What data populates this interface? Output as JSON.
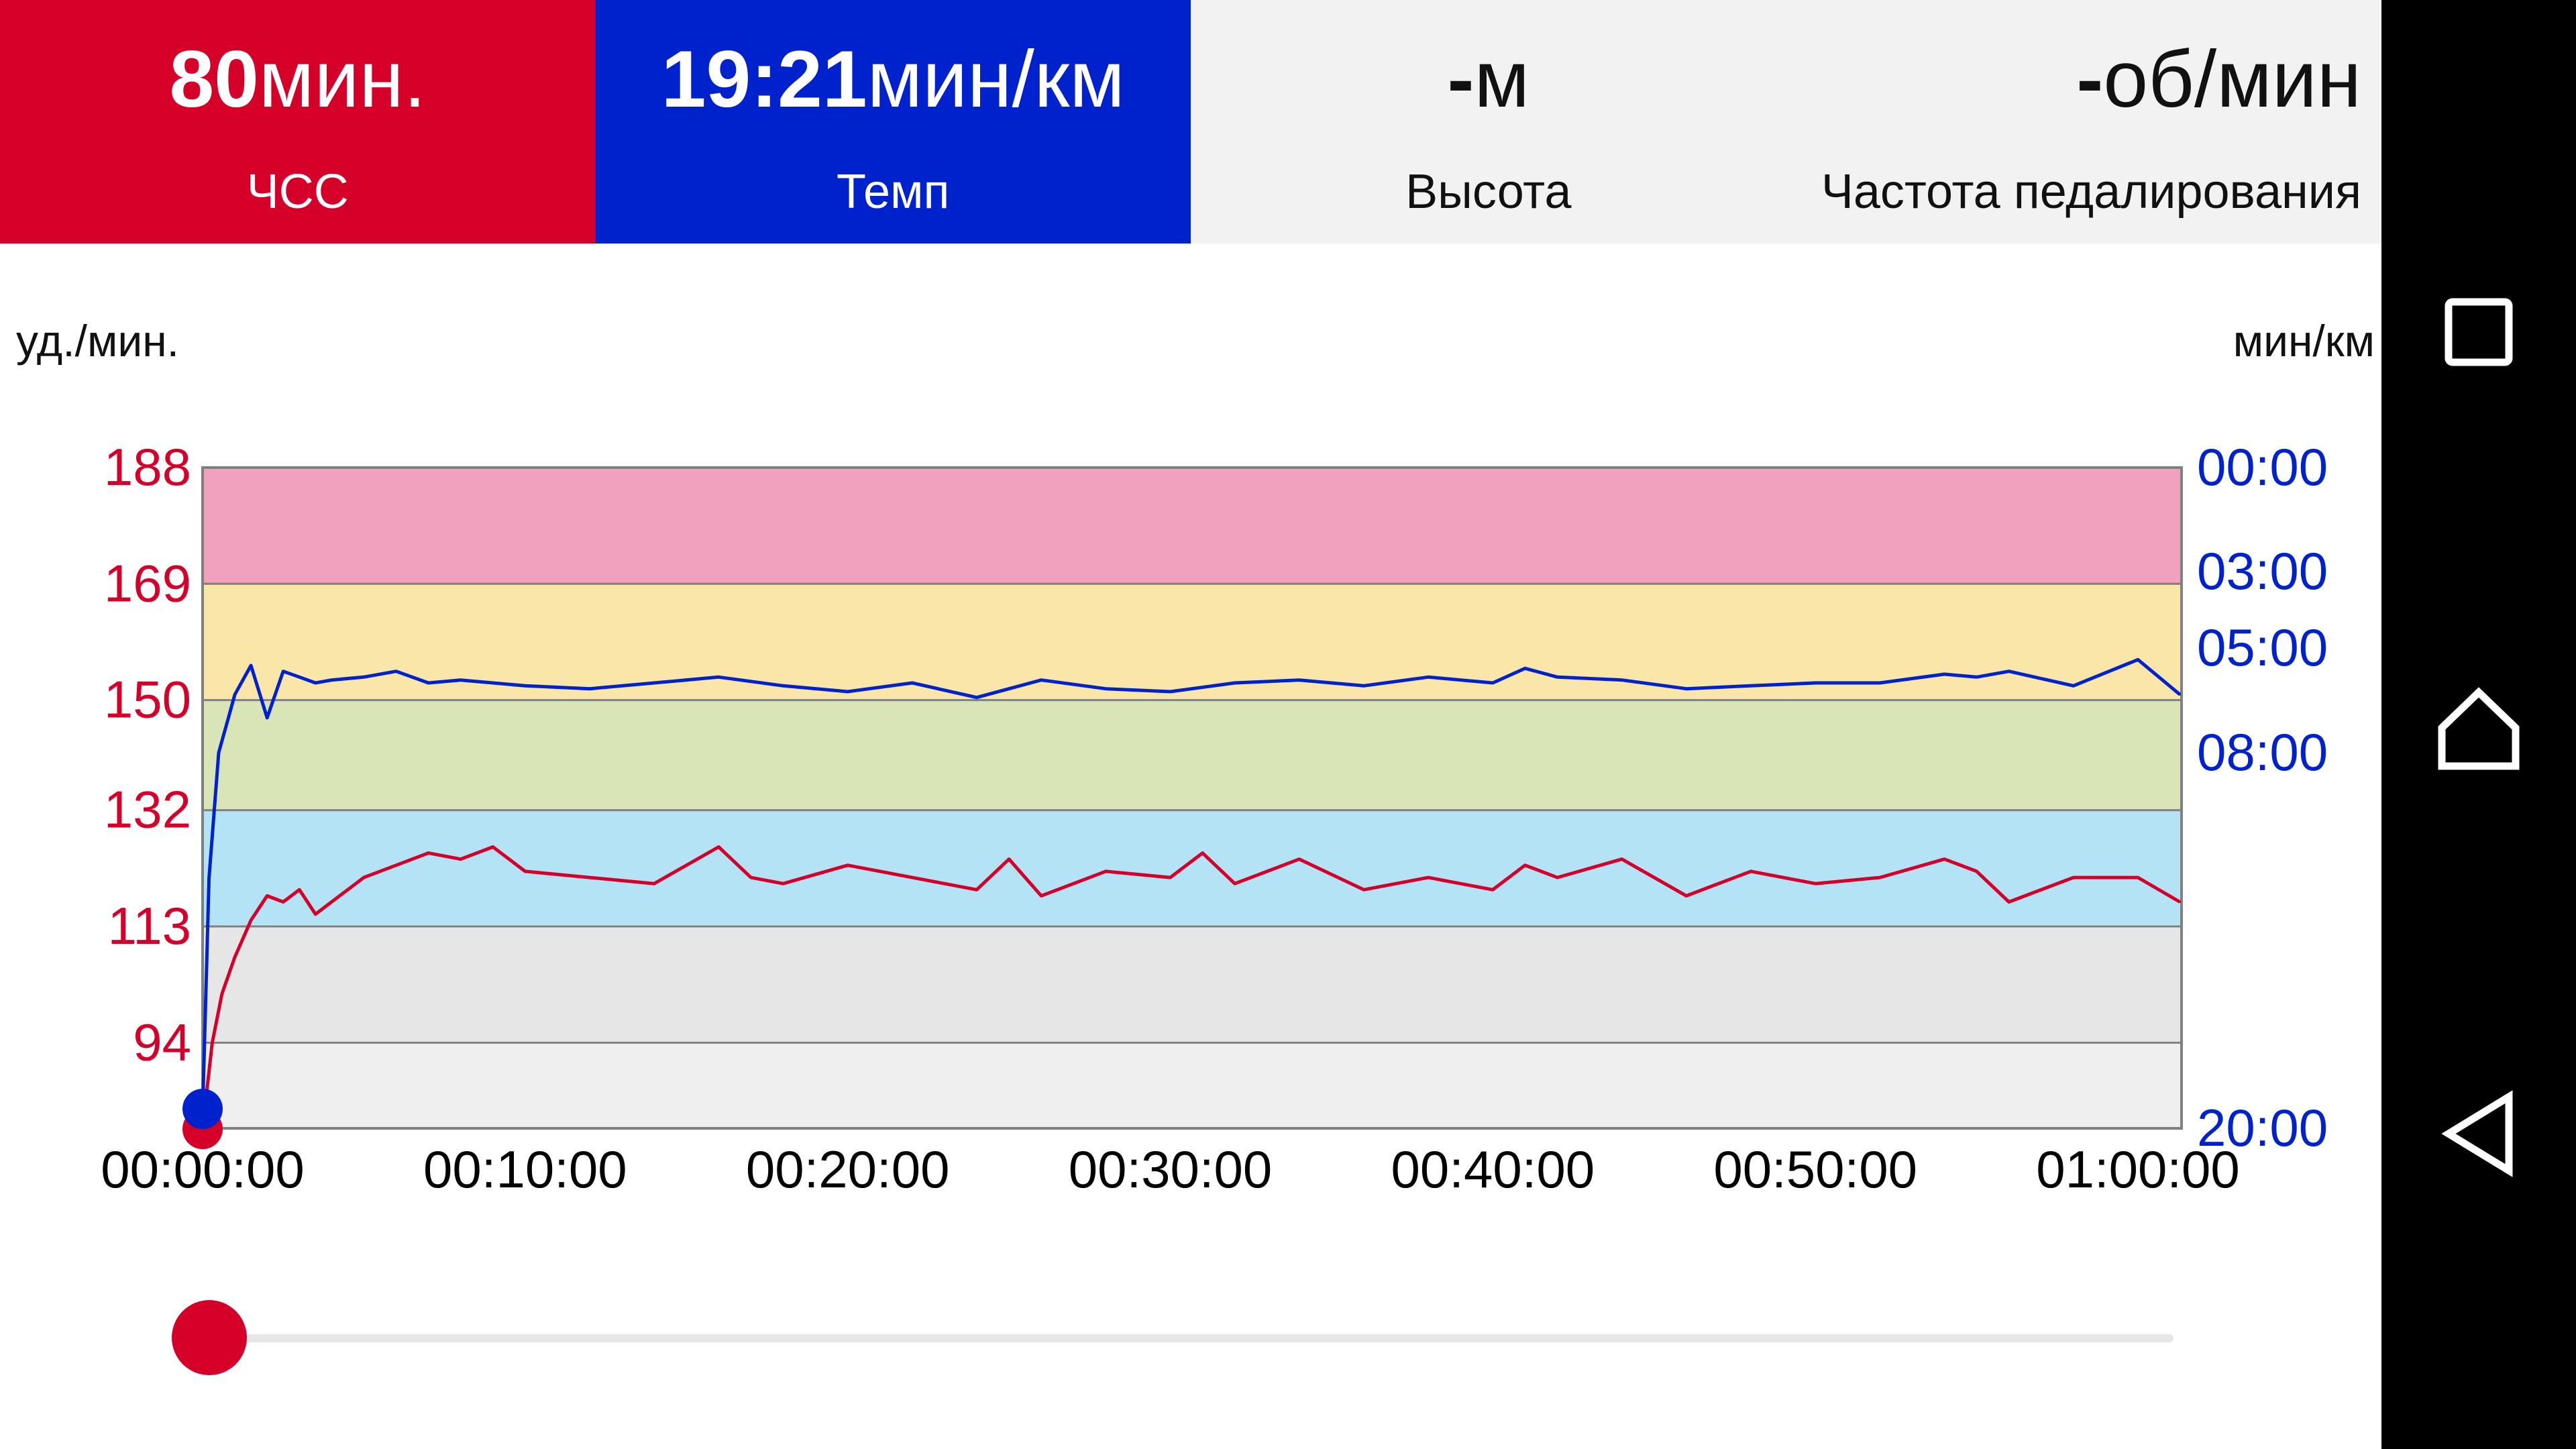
{
  "stats": [
    {
      "value": "80",
      "unit": "мин.",
      "label": "ЧСС",
      "color": "#d4002a"
    },
    {
      "value": "19:21",
      "unit": "мин/км",
      "label": "Темп",
      "color": "#0022cc"
    },
    {
      "value": "-",
      "unit": "м",
      "label": "Высота",
      "color": "#f2f2f2"
    },
    {
      "value": "-",
      "unit": "об/мин",
      "label": "Частота педалирования",
      "color": "#f2f2f2"
    }
  ],
  "chart": {
    "left_unit": "уд./мин.",
    "right_unit": "мин/км"
  },
  "chart_data": {
    "type": "line",
    "x_ticks": [
      "00:00:00",
      "00:10:00",
      "00:20:00",
      "00:30:00",
      "00:40:00",
      "00:50:00",
      "01:00:00"
    ],
    "y_left_ticks": [
      "188",
      "169",
      "150",
      "132",
      "113",
      "94"
    ],
    "y_right_ticks": [
      "00:00",
      "03:00",
      "05:00",
      "08:00",
      "20:00"
    ],
    "y_left_range": [
      80,
      188
    ],
    "y_right_range_reversed": [
      "20:00",
      "00:00"
    ],
    "zones": [
      {
        "from": 80,
        "to": 94,
        "color": "#efefef"
      },
      {
        "from": 94,
        "to": 113,
        "color": "#e6e6e6"
      },
      {
        "from": 113,
        "to": 132,
        "color": "#b3e3f4"
      },
      {
        "from": 132,
        "to": 150,
        "color": "#d9e4b7"
      },
      {
        "from": 150,
        "to": 169,
        "color": "#fbe6a9"
      },
      {
        "from": 169,
        "to": 188,
        "color": "#f1a0bd"
      }
    ],
    "series": [
      {
        "color": "#d4002a",
        "axis": "left",
        "x_minutes": [
          0,
          0.3,
          0.6,
          1,
          1.5,
          2,
          2.5,
          3,
          3.5,
          4,
          5,
          6,
          7,
          8,
          9,
          10,
          12,
          14,
          16,
          17,
          18,
          20,
          22,
          24,
          25,
          26,
          28,
          30,
          31,
          32,
          34,
          36,
          38,
          40,
          41,
          42,
          44,
          46,
          48,
          50,
          52,
          54,
          55,
          56,
          58,
          60,
          61.3
        ],
        "values": [
          80,
          94,
          102,
          108,
          114,
          118,
          117,
          119,
          115,
          117,
          121,
          123,
          125,
          124,
          126,
          122,
          121,
          120,
          126,
          121,
          120,
          123,
          121,
          119,
          124,
          118,
          122,
          121,
          125,
          120,
          124,
          119,
          121,
          119,
          123,
          121,
          124,
          118,
          122,
          120,
          121,
          124,
          122,
          117,
          121,
          121,
          117
        ]
      },
      {
        "color": "#0022cc",
        "axis": "right",
        "x_minutes": [
          0,
          0.2,
          0.5,
          0.8,
          1,
          1.5,
          2,
          2.5,
          3,
          3.5,
          4,
          5,
          6,
          7,
          8,
          10,
          12,
          14,
          16,
          18,
          20,
          22,
          24,
          25,
          26,
          28,
          30,
          32,
          34,
          36,
          38,
          40,
          41,
          42,
          44,
          46,
          48,
          50,
          52,
          54,
          55,
          56,
          58,
          60,
          61.3
        ],
        "values": [
          "19:30",
          "12:00",
          "08:00",
          "07:00",
          "06:20",
          "05:30",
          "07:00",
          "05:40",
          "05:50",
          "06:00",
          "05:55",
          "05:50",
          "05:40",
          "06:00",
          "05:55",
          "06:05",
          "06:10",
          "06:00",
          "05:50",
          "06:05",
          "06:15",
          "06:00",
          "06:25",
          "06:10",
          "05:55",
          "06:10",
          "06:15",
          "06:00",
          "05:55",
          "06:05",
          "05:50",
          "06:00",
          "05:35",
          "05:50",
          "05:55",
          "06:10",
          "06:05",
          "06:00",
          "06:00",
          "05:45",
          "05:50",
          "05:40",
          "06:05",
          "05:20",
          "06:20"
        ]
      }
    ],
    "slider_position": 0.0
  },
  "nav": {
    "recents_icon": "square-icon",
    "home_icon": "home-icon",
    "back_icon": "back-triangle-icon"
  }
}
